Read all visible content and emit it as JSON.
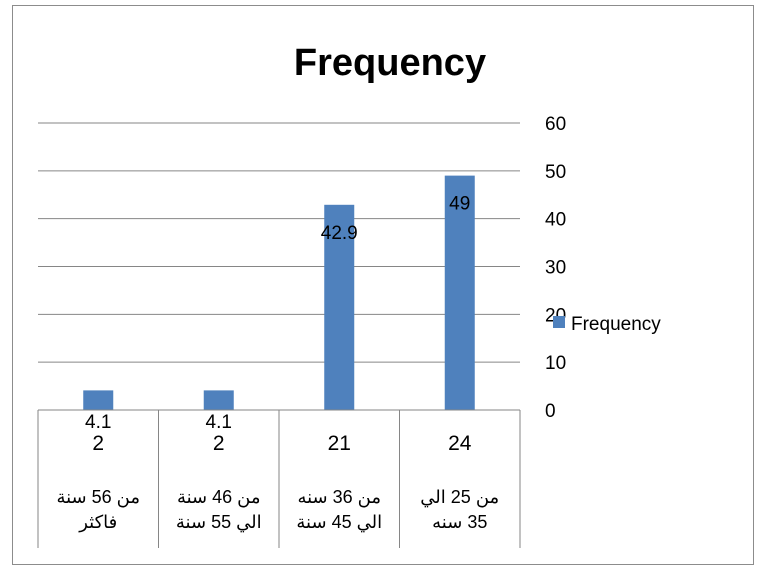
{
  "chart_data": {
    "type": "bar",
    "title": "Frequency",
    "xlabel": "",
    "ylabel": "",
    "categories": [
      [
        "من 56 سنة",
        "فاكثر"
      ],
      [
        "من 46 سنة",
        "الي 55 سنة"
      ],
      [
        "من 36 سنه",
        "الي 45 سنة"
      ],
      [
        "من 25  الي",
        "35 سنه"
      ]
    ],
    "series": [
      {
        "name": "Frequency",
        "values": [
          4.1,
          4.1,
          42.9,
          49
        ],
        "color": "#4f81bd"
      }
    ],
    "table_values": [
      "2",
      "2",
      "21",
      "24"
    ],
    "data_labels": [
      "4.1",
      "4.1",
      "42.9",
      "49"
    ],
    "y_ticks": [
      "60",
      "50",
      "40",
      "30",
      "20",
      "10",
      "0"
    ],
    "ylim": [
      0,
      60
    ],
    "y_axis_side": "right",
    "grid": true,
    "legend_position": "right"
  }
}
